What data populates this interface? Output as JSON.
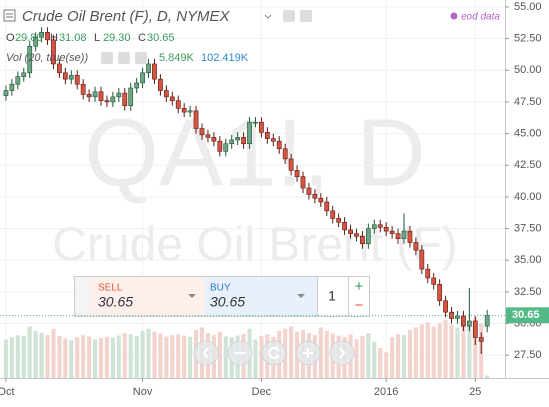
{
  "header": {
    "title": "Crude Oil Brent (F), D, NYMEX",
    "eod": "eod data",
    "ohlc": [
      [
        "O",
        "29.80"
      ],
      [
        "H",
        "31.08"
      ],
      [
        "L",
        "29.30"
      ],
      [
        "C",
        "30.65"
      ]
    ],
    "volume_study": "Vol (20, true(se))",
    "volume_last": "5.849K",
    "volume_ma": "102.419K"
  },
  "watermark": {
    "symbol": "QA1!, D",
    "name": "Crude Oil Brent (F)"
  },
  "trade_panel": {
    "sell_label": "SELL",
    "sell_price": "30.65",
    "buy_label": "BUY",
    "buy_price": "30.65",
    "quantity": "1",
    "plus": "+",
    "minus": "−"
  },
  "chart_data": {
    "type": "candlestick",
    "ylim": [
      25.7,
      55.55
    ],
    "xlim": [
      -1,
      84
    ],
    "yticks": [
      {
        "value": 27.5,
        "label": "27.50"
      },
      {
        "value": 30,
        "label": "30.00"
      },
      {
        "value": 32.5,
        "label": "32.50"
      },
      {
        "value": 35,
        "label": "35.00"
      },
      {
        "value": 37.5,
        "label": "37.50"
      },
      {
        "value": 40,
        "label": "40.00"
      },
      {
        "value": 42.5,
        "label": "42.50"
      },
      {
        "value": 45,
        "label": "45.00"
      },
      {
        "value": 47.5,
        "label": "47.50"
      },
      {
        "value": 50,
        "label": "50.00"
      },
      {
        "value": 52.5,
        "label": "52.50"
      },
      {
        "value": 55,
        "label": "55.00"
      }
    ],
    "xticks": [
      {
        "value": 0,
        "label": "Oct"
      },
      {
        "value": 23,
        "label": "Nov"
      },
      {
        "value": 43,
        "label": "Dec"
      },
      {
        "value": 64,
        "label": "2016"
      },
      {
        "value": 79,
        "label": "25"
      }
    ],
    "grid": true,
    "up_color": "#6ba583",
    "down_color": "#d75442",
    "up_border": "#225437",
    "down_border": "#5b1a13",
    "volume_up_color": "#cfe3d6",
    "volume_down_color": "#f3d3cd",
    "last_price_color": "#53b987",
    "last_price_label": "30.65",
    "open": [
      48.0,
      48.4,
      48.9,
      49.5,
      49.8,
      51.9,
      52.6,
      53.0,
      52.4,
      50.5,
      49.8,
      49.3,
      49.6,
      48.9,
      48.1,
      47.9,
      48.3,
      47.6,
      47.5,
      47.9,
      48.2,
      47.2,
      48.6,
      49.0,
      49.8,
      50.5,
      49.3,
      48.4,
      47.9,
      47.6,
      47.0,
      46.7,
      46.8,
      45.4,
      44.9,
      44.7,
      44.4,
      43.6,
      44.2,
      44.5,
      44.7,
      44.2,
      45.9,
      45.9,
      45.1,
      44.6,
      44.4,
      43.8,
      43.0,
      42.1,
      41.6,
      40.7,
      40.2,
      39.9,
      39.6,
      38.9,
      38.3,
      38.0,
      37.4,
      37.1,
      36.9,
      36.3,
      37.5,
      37.8,
      37.6,
      37.3,
      37.1,
      36.7,
      37.3,
      36.4,
      35.8,
      34.3,
      33.6,
      33.1,
      31.8,
      30.9,
      30.4,
      30.6,
      29.8,
      30.2,
      28.9,
      29.8
    ],
    "high": [
      48.8,
      49.3,
      49.9,
      50.2,
      52.3,
      53.0,
      53.4,
      53.4,
      52.8,
      50.9,
      50.2,
      50.0,
      50.0,
      49.3,
      48.5,
      48.7,
      48.7,
      48.0,
      48.3,
      48.6,
      48.6,
      49.0,
      49.4,
      50.2,
      50.9,
      50.9,
      49.7,
      48.8,
      48.3,
      48.0,
      47.4,
      47.2,
      47.2,
      45.8,
      45.3,
      45.1,
      44.8,
      44.6,
      44.9,
      45.1,
      45.1,
      46.3,
      46.3,
      46.3,
      45.5,
      45.0,
      44.8,
      44.2,
      43.4,
      42.5,
      42.0,
      41.1,
      40.6,
      40.3,
      40.0,
      39.3,
      38.7,
      38.4,
      37.8,
      37.5,
      37.3,
      37.9,
      38.2,
      38.2,
      38.0,
      37.7,
      37.5,
      38.7,
      37.7,
      36.8,
      36.2,
      34.7,
      34.0,
      33.5,
      32.2,
      31.3,
      31.0,
      31.0,
      32.8,
      30.6,
      29.3,
      31.08
    ],
    "low": [
      47.6,
      48.0,
      48.5,
      49.1,
      49.4,
      51.5,
      52.2,
      52.0,
      50.1,
      49.4,
      48.9,
      48.9,
      48.5,
      47.7,
      47.5,
      47.5,
      47.2,
      47.1,
      47.1,
      47.5,
      46.8,
      46.8,
      48.2,
      48.6,
      49.4,
      48.9,
      48.0,
      47.5,
      47.2,
      46.6,
      46.3,
      46.3,
      45.0,
      44.5,
      44.3,
      44.0,
      43.2,
      43.2,
      43.8,
      44.1,
      43.8,
      43.8,
      45.5,
      44.7,
      44.2,
      44.0,
      43.4,
      42.6,
      41.7,
      41.2,
      40.3,
      39.8,
      39.5,
      39.2,
      38.5,
      37.9,
      37.6,
      37.0,
      36.7,
      36.5,
      35.9,
      35.9,
      37.1,
      37.2,
      36.9,
      36.7,
      36.3,
      36.3,
      36.0,
      35.4,
      33.9,
      33.2,
      32.7,
      31.4,
      30.5,
      30.0,
      30.0,
      29.4,
      29.4,
      28.3,
      27.6,
      29.3
    ],
    "close": [
      48.4,
      48.9,
      49.5,
      49.8,
      51.9,
      52.6,
      53.0,
      52.4,
      50.5,
      49.8,
      49.3,
      49.6,
      48.9,
      48.1,
      47.9,
      48.3,
      47.6,
      47.5,
      47.9,
      48.2,
      47.2,
      48.6,
      49.0,
      49.8,
      50.5,
      49.3,
      48.4,
      47.9,
      47.6,
      47.0,
      46.7,
      46.8,
      45.4,
      44.9,
      44.7,
      44.4,
      43.6,
      44.2,
      44.5,
      44.7,
      44.2,
      45.9,
      45.9,
      45.1,
      44.6,
      44.4,
      43.8,
      43.0,
      42.1,
      41.6,
      40.7,
      40.2,
      39.9,
      39.6,
      38.9,
      38.3,
      38.0,
      37.4,
      37.1,
      36.9,
      36.3,
      37.5,
      37.8,
      37.6,
      37.3,
      37.1,
      36.7,
      37.3,
      36.4,
      35.8,
      34.3,
      33.6,
      33.1,
      31.8,
      30.9,
      30.4,
      30.6,
      29.8,
      30.2,
      28.9,
      28.6,
      30.65
    ],
    "volume": [
      90,
      95,
      100,
      98,
      120,
      110,
      105,
      100,
      115,
      98,
      92,
      88,
      95,
      100,
      97,
      90,
      93,
      96,
      94,
      99,
      105,
      102,
      98,
      110,
      115,
      108,
      104,
      97,
      100,
      102,
      99,
      96,
      112,
      118,
      105,
      100,
      108,
      97,
      95,
      99,
      103,
      115,
      90,
      98,
      102,
      96,
      110,
      115,
      120,
      108,
      112,
      105,
      100,
      118,
      110,
      104,
      99,
      96,
      102,
      90,
      98,
      105,
      85,
      70,
      60,
      95,
      102,
      100,
      112,
      118,
      125,
      130,
      120,
      128,
      135,
      125,
      118,
      122,
      130,
      140,
      128,
      5.849
    ]
  }
}
